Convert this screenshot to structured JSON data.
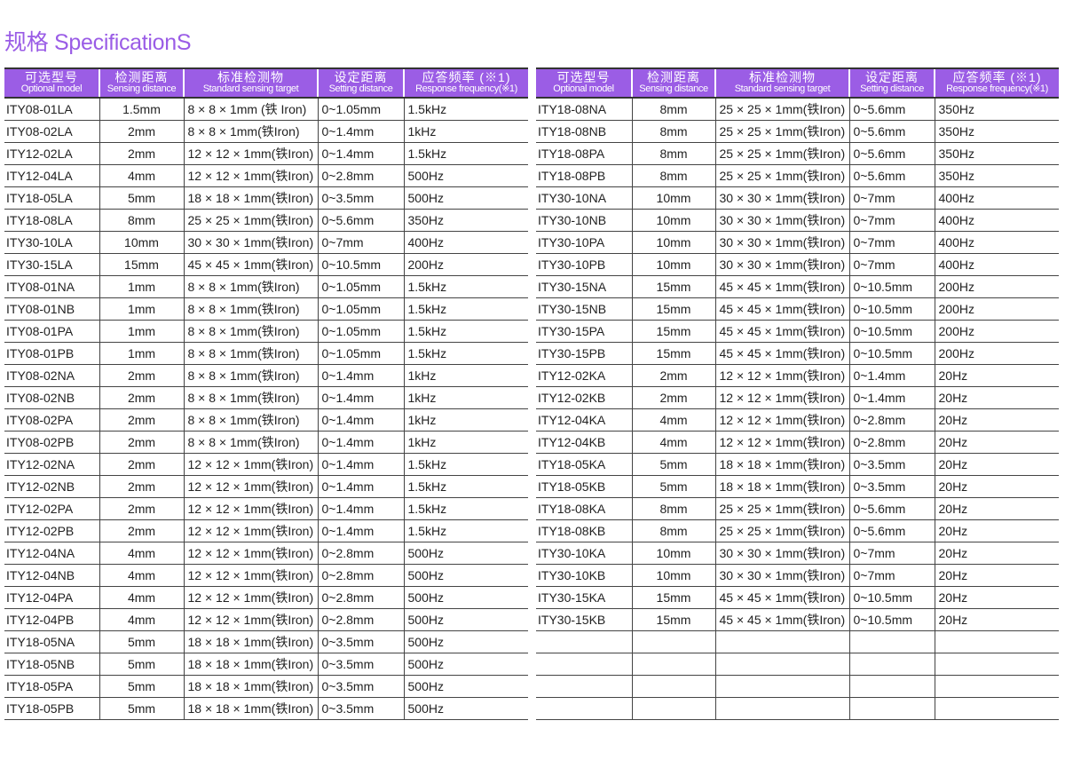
{
  "title": "规格 SpecificationS",
  "colors": {
    "header_bg": "#9b5de5",
    "title": "#9a5ce6"
  },
  "headers": [
    {
      "cn": "可选型号",
      "en": "Optional model"
    },
    {
      "cn": "检测距离",
      "en": "Sensing distance"
    },
    {
      "cn": "标准检测物",
      "en": "Standard sensing target"
    },
    {
      "cn": "设定距离",
      "en": "Setting distance"
    },
    {
      "cn": "应答频率 (※1)",
      "en": "Response frequency(※1)"
    }
  ],
  "left_rows": [
    [
      "ITY08-01LA",
      "1.5mm",
      "8 × 8 × 1mm (铁 Iron)",
      "0~1.05mm",
      "1.5kHz"
    ],
    [
      "ITY08-02LA",
      "2mm",
      "8 × 8 × 1mm(铁Iron)",
      "0~1.4mm",
      "1kHz"
    ],
    [
      "ITY12-02LA",
      "2mm",
      "12 × 12 × 1mm(铁Iron)",
      "0~1.4mm",
      "1.5kHz"
    ],
    [
      "ITY12-04LA",
      "4mm",
      "12 × 12 × 1mm(铁Iron)",
      "0~2.8mm",
      "500Hz"
    ],
    [
      "ITY18-05LA",
      "5mm",
      "18 × 18 × 1mm(铁Iron)",
      "0~3.5mm",
      "500Hz"
    ],
    [
      "ITY18-08LA",
      "8mm",
      "25 × 25 × 1mm(铁Iron)",
      "0~5.6mm",
      "350Hz"
    ],
    [
      "ITY30-10LA",
      "10mm",
      "30 × 30 × 1mm(铁Iron)",
      "0~7mm",
      "400Hz"
    ],
    [
      "ITY30-15LA",
      "15mm",
      "45 × 45 × 1mm(铁Iron)",
      "0~10.5mm",
      "200Hz"
    ],
    [
      "ITY08-01NA",
      "1mm",
      "8 × 8 × 1mm(铁Iron)",
      "0~1.05mm",
      "1.5kHz"
    ],
    [
      "ITY08-01NB",
      "1mm",
      "8 × 8 × 1mm(铁Iron)",
      "0~1.05mm",
      "1.5kHz"
    ],
    [
      "ITY08-01PA",
      "1mm",
      "8 × 8 × 1mm(铁Iron)",
      "0~1.05mm",
      "1.5kHz"
    ],
    [
      "ITY08-01PB",
      "1mm",
      "8 × 8 × 1mm(铁Iron)",
      "0~1.05mm",
      "1.5kHz"
    ],
    [
      "ITY08-02NA",
      "2mm",
      "8 × 8 × 1mm(铁Iron)",
      "0~1.4mm",
      "1kHz"
    ],
    [
      "ITY08-02NB",
      "2mm",
      "8 × 8 × 1mm(铁Iron)",
      "0~1.4mm",
      "1kHz"
    ],
    [
      "ITY08-02PA",
      "2mm",
      "8 × 8 × 1mm(铁Iron)",
      "0~1.4mm",
      "1kHz"
    ],
    [
      "ITY08-02PB",
      "2mm",
      "8 × 8 × 1mm(铁Iron)",
      "0~1.4mm",
      "1kHz"
    ],
    [
      "ITY12-02NA",
      "2mm",
      "12 × 12 × 1mm(铁Iron)",
      "0~1.4mm",
      "1.5kHz"
    ],
    [
      "ITY12-02NB",
      "2mm",
      "12 × 12 × 1mm(铁Iron)",
      "0~1.4mm",
      "1.5kHz"
    ],
    [
      "ITY12-02PA",
      "2mm",
      "12 × 12 × 1mm(铁Iron)",
      "0~1.4mm",
      "1.5kHz"
    ],
    [
      "ITY12-02PB",
      "2mm",
      "12 × 12 × 1mm(铁Iron)",
      "0~1.4mm",
      "1.5kHz"
    ],
    [
      "ITY12-04NA",
      "4mm",
      "12 × 12 × 1mm(铁Iron)",
      "0~2.8mm",
      "500Hz"
    ],
    [
      "ITY12-04NB",
      "4mm",
      "12 × 12 × 1mm(铁Iron)",
      "0~2.8mm",
      "500Hz"
    ],
    [
      "ITY12-04PA",
      "4mm",
      "12 × 12 × 1mm(铁Iron)",
      "0~2.8mm",
      "500Hz"
    ],
    [
      "ITY12-04PB",
      "4mm",
      "12 × 12 × 1mm(铁Iron)",
      "0~2.8mm",
      "500Hz"
    ],
    [
      "ITY18-05NA",
      "5mm",
      "18 × 18 × 1mm(铁Iron)",
      "0~3.5mm",
      "500Hz"
    ],
    [
      "ITY18-05NB",
      "5mm",
      "18 × 18 × 1mm(铁Iron)",
      "0~3.5mm",
      "500Hz"
    ],
    [
      "ITY18-05PA",
      "5mm",
      "18 × 18 × 1mm(铁Iron)",
      "0~3.5mm",
      "500Hz"
    ],
    [
      "ITY18-05PB",
      "5mm",
      "18 × 18 × 1mm(铁Iron)",
      "0~3.5mm",
      "500Hz"
    ]
  ],
  "right_rows": [
    [
      "ITY18-08NA",
      "8mm",
      "25 × 25 × 1mm(铁Iron)",
      "0~5.6mm",
      "350Hz"
    ],
    [
      "ITY18-08NB",
      "8mm",
      "25 × 25 × 1mm(铁Iron)",
      "0~5.6mm",
      "350Hz"
    ],
    [
      "ITY18-08PA",
      "8mm",
      "25 × 25 × 1mm(铁Iron)",
      "0~5.6mm",
      "350Hz"
    ],
    [
      "ITY18-08PB",
      "8mm",
      "25 × 25 × 1mm(铁Iron)",
      "0~5.6mm",
      "350Hz"
    ],
    [
      "ITY30-10NA",
      "10mm",
      "30 × 30 × 1mm(铁Iron)",
      "0~7mm",
      "400Hz"
    ],
    [
      "ITY30-10NB",
      "10mm",
      "30 × 30 × 1mm(铁Iron)",
      "0~7mm",
      "400Hz"
    ],
    [
      "ITY30-10PA",
      "10mm",
      "30 × 30 × 1mm(铁Iron)",
      "0~7mm",
      "400Hz"
    ],
    [
      "ITY30-10PB",
      "10mm",
      "30 × 30 × 1mm(铁Iron)",
      "0~7mm",
      "400Hz"
    ],
    [
      "ITY30-15NA",
      "15mm",
      "45 × 45 × 1mm(铁Iron)",
      "0~10.5mm",
      "200Hz"
    ],
    [
      "ITY30-15NB",
      "15mm",
      "45 × 45 × 1mm(铁Iron)",
      "0~10.5mm",
      "200Hz"
    ],
    [
      "ITY30-15PA",
      "15mm",
      "45 × 45 × 1mm(铁Iron)",
      "0~10.5mm",
      "200Hz"
    ],
    [
      "ITY30-15PB",
      "15mm",
      "45 × 45 × 1mm(铁Iron)",
      "0~10.5mm",
      "200Hz"
    ],
    [
      "ITY12-02KA",
      "2mm",
      "12 × 12 × 1mm(铁Iron)",
      "0~1.4mm",
      "20Hz"
    ],
    [
      "ITY12-02KB",
      "2mm",
      "12 × 12 × 1mm(铁Iron)",
      "0~1.4mm",
      "20Hz"
    ],
    [
      "ITY12-04KA",
      "4mm",
      "12 × 12 × 1mm(铁Iron)",
      "0~2.8mm",
      "20Hz"
    ],
    [
      "ITY12-04KB",
      "4mm",
      "12 × 12 × 1mm(铁Iron)",
      "0~2.8mm",
      "20Hz"
    ],
    [
      "ITY18-05KA",
      "5mm",
      "18 × 18 × 1mm(铁Iron)",
      "0~3.5mm",
      "20Hz"
    ],
    [
      "ITY18-05KB",
      "5mm",
      "18 × 18 × 1mm(铁Iron)",
      "0~3.5mm",
      "20Hz"
    ],
    [
      "ITY18-08KA",
      "8mm",
      "25 × 25 × 1mm(铁Iron)",
      "0~5.6mm",
      "20Hz"
    ],
    [
      "ITY18-08KB",
      "8mm",
      "25 × 25 × 1mm(铁Iron)",
      "0~5.6mm",
      "20Hz"
    ],
    [
      "ITY30-10KA",
      "10mm",
      "30 × 30 × 1mm(铁Iron)",
      "0~7mm",
      "20Hz"
    ],
    [
      "ITY30-10KB",
      "10mm",
      "30 × 30 × 1mm(铁Iron)",
      "0~7mm",
      "20Hz"
    ],
    [
      "ITY30-15KA",
      "15mm",
      "45 × 45 × 1mm(铁Iron)",
      "0~10.5mm",
      "20Hz"
    ],
    [
      "ITY30-15KB",
      "15mm",
      "45 × 45 × 1mm(铁Iron)",
      "0~10.5mm",
      "20Hz"
    ],
    [
      "",
      "",
      "",
      "",
      ""
    ],
    [
      "",
      "",
      "",
      "",
      ""
    ],
    [
      "",
      "",
      "",
      "",
      ""
    ],
    [
      "",
      "",
      "",
      "",
      ""
    ]
  ]
}
